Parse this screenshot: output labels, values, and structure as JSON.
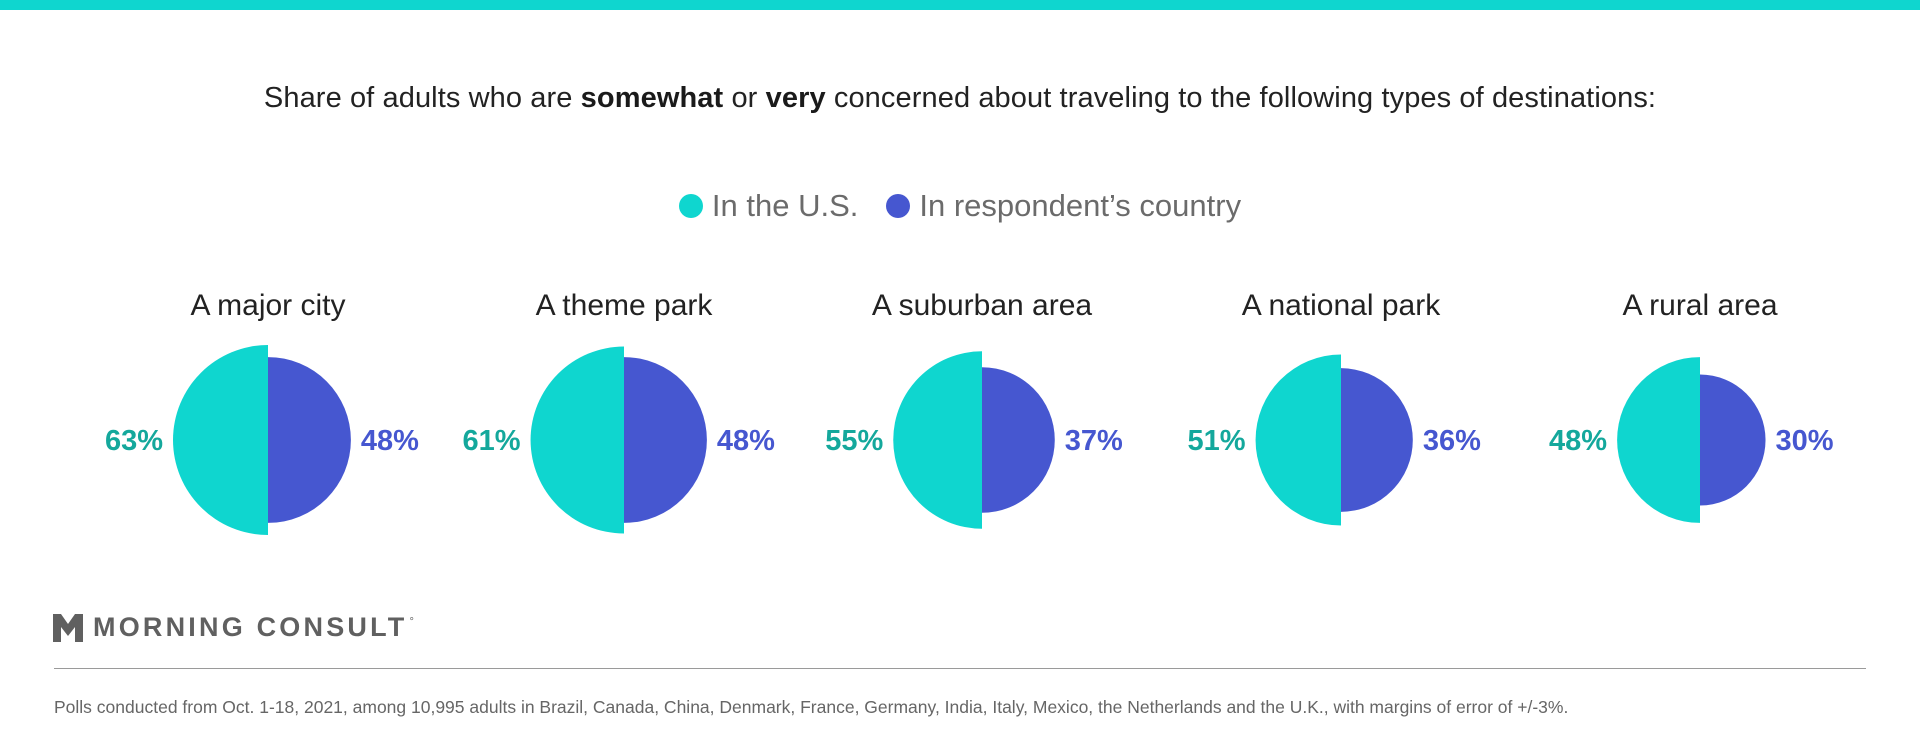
{
  "title": {
    "pre": "Share of adults who are ",
    "bold1": "somewhat",
    "mid": " or ",
    "bold2": "very",
    "post": " concerned about traveling to the following types of destinations:"
  },
  "legend": [
    {
      "label": "In the U.S.",
      "color": "#0fd6cf"
    },
    {
      "label": "In respondent’s country",
      "color": "#4657d0"
    }
  ],
  "chart_data": {
    "type": "pie",
    "subtype": "paired half-circle area comparison",
    "categories": [
      "A major city",
      "A theme park",
      "A suburban area",
      "A national park",
      "A rural area"
    ],
    "series": [
      {
        "name": "In the U.S.",
        "color": "#0fd6cf",
        "label_color": "#14a89c",
        "values": [
          63,
          61,
          55,
          51,
          48
        ]
      },
      {
        "name": "In respondent’s country",
        "color": "#4657d0",
        "label_color": "#4657d0",
        "values": [
          48,
          48,
          37,
          36,
          30
        ]
      }
    ],
    "value_suffix": "%",
    "legend_position": "top-center"
  },
  "logo": {
    "text": "MORNING CONSULT",
    "mark": "°"
  },
  "footnote": "Polls conducted from Oct. 1-18, 2021, among 10,995 adults in Brazil, Canada, China, Denmark, France, Germany, India, Italy, Mexico, the Netherlands and the U.K., with margins of error of +/-3%."
}
